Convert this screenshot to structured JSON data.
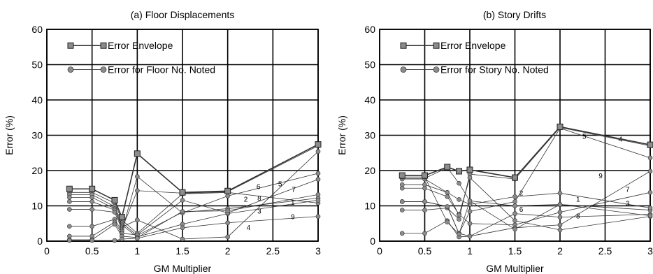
{
  "chart_data": [
    {
      "type": "line",
      "title": "(a) Floor Displacements",
      "xlabel": "GM Multiplier",
      "ylabel": "Error (%)",
      "xlim": [
        0,
        3
      ],
      "ylim": [
        0,
        60
      ],
      "xticks": [
        "0",
        "0.5",
        "1",
        "1.5",
        "2",
        "2.5",
        "3"
      ],
      "yticks": [
        "0",
        "10",
        "20",
        "30",
        "40",
        "50",
        "60"
      ],
      "grid": true,
      "legend": {
        "position": "top-left",
        "entries": [
          {
            "label": "Error Envelope",
            "marker": "square"
          },
          {
            "label": "Error for Floor No. Noted",
            "marker": "circle"
          }
        ]
      },
      "x": [
        0.25,
        0.5,
        0.75,
        0.83,
        1.0,
        1.5,
        2.0,
        3.0
      ],
      "envelope": {
        "name": "Error Envelope",
        "values": [
          14.8,
          14.8,
          11.6,
          6.8,
          24.8,
          13.8,
          14.2,
          27.4
        ]
      },
      "series": [
        {
          "name": "1",
          "values": [
            13.8,
            13.8,
            10.8,
            6.0,
            2.2,
            13.4,
            13.8,
            10.8
          ],
          "label_x": 2.72,
          "label_y": 10.3
        },
        {
          "name": "2",
          "values": [
            13.2,
            13.2,
            9.8,
            5.2,
            1.6,
            8.2,
            9.2,
            12.2
          ],
          "label_x": 2.2,
          "label_y": 11.2
        },
        {
          "name": "3",
          "values": [
            12.4,
            12.4,
            9.2,
            4.6,
            1.2,
            4.8,
            7.8,
            11.6
          ],
          "label_x": 2.35,
          "label_y": 7.8
        },
        {
          "name": "4",
          "values": [
            11.2,
            11.2,
            8.8,
            4.0,
            6.0,
            0.6,
            1.2,
            25.4
          ],
          "label_x": 2.23,
          "label_y": 3.2
        },
        {
          "name": "5",
          "values": [
            9.0,
            9.0,
            8.2,
            3.4,
            14.3,
            13.6,
            14.0,
            27.0
          ],
          "label_x": 2.58,
          "label_y": 15.5
        },
        {
          "name": "6",
          "values": [
            4.2,
            4.2,
            6.2,
            2.8,
            18.3,
            8.0,
            12.8,
            19.2
          ],
          "label_x": 2.34,
          "label_y": 14.8
        },
        {
          "name": "7",
          "values": [
            1.4,
            1.4,
            5.4,
            2.2,
            1.8,
            11.6,
            8.0,
            17.5
          ],
          "label_x": 2.73,
          "label_y": 14.0
        },
        {
          "name": "8",
          "values": [
            0.4,
            0.4,
            4.8,
            1.4,
            1.0,
            8.4,
            8.6,
            13.2
          ],
          "label_x": 2.35,
          "label_y": 11.5
        },
        {
          "name": "9",
          "values": [
            0.2,
            0.2,
            0.2,
            0.6,
            0.8,
            3.8,
            5.2,
            7.0
          ],
          "label_x": 2.72,
          "label_y": 6.2
        }
      ]
    },
    {
      "type": "line",
      "title": "(b) Story Drifts",
      "xlabel": "GM Multiplier",
      "ylabel": "Error (%)",
      "xlim": [
        0,
        3
      ],
      "ylim": [
        0,
        60
      ],
      "xticks": [
        "0",
        "0.5",
        "1",
        "1.5",
        "2",
        "2.5",
        "3"
      ],
      "yticks": [
        "0",
        "10",
        "20",
        "30",
        "40",
        "50",
        "60"
      ],
      "grid": true,
      "legend": {
        "position": "top-left",
        "entries": [
          {
            "label": "Error Envelope",
            "marker": "square"
          },
          {
            "label": "Error for Story No. Noted",
            "marker": "circle"
          }
        ]
      },
      "x": [
        0.25,
        0.5,
        0.75,
        0.88,
        1.0,
        1.5,
        2.0,
        3.0
      ],
      "envelope": {
        "name": "Error Envelope",
        "values": [
          18.6,
          18.6,
          21.0,
          19.8,
          20.2,
          18.0,
          32.4,
          27.3
        ]
      },
      "series": [
        {
          "name": "1",
          "values": [
            17.8,
            17.8,
            20.8,
            16.4,
            11.4,
            10.0,
            10.4,
            8.8
          ],
          "label_x": 2.2,
          "label_y": 11.2
        },
        {
          "name": "2",
          "values": [
            16.0,
            16.0,
            13.8,
            11.8,
            10.4,
            12.6,
            13.6,
            9.4
          ],
          "label_x": 1.57,
          "label_y": 13.0
        },
        {
          "name": "3",
          "values": [
            15.0,
            15.0,
            12.6,
            7.6,
            5.0,
            4.6,
            8.2,
            13.8
          ],
          "label_x": 2.75,
          "label_y": 10.0
        },
        {
          "name": "4",
          "values": [
            11.2,
            11.2,
            9.8,
            2.2,
            8.4,
            11.2,
            32.0,
            23.6
          ],
          "label_x": 2.67,
          "label_y": 28.2
        },
        {
          "name": "5",
          "values": [
            8.8,
            8.8,
            9.4,
            6.2,
            19.0,
            17.6,
            32.2,
            27.0
          ],
          "label_x": 2.27,
          "label_y": 29.0
        },
        {
          "name": "6",
          "values": [
            2.2,
            2.2,
            5.8,
            1.2,
            1.4,
            7.8,
            6.8,
            7.6
          ],
          "label_x": 1.57,
          "label_y": 8.3
        },
        {
          "name": "7",
          "values": [
            11.2,
            11.2,
            9.8,
            2.2,
            1.4,
            3.8,
            4.6,
            19.8
          ],
          "label_x": 2.75,
          "label_y": 14.0
        },
        {
          "name": "8",
          "values": [
            17.6,
            17.6,
            13.8,
            7.4,
            18.0,
            5.8,
            3.2,
            7.0
          ],
          "label_x": 2.2,
          "label_y": 6.4
        },
        {
          "name": "9",
          "values": [
            18.2,
            18.2,
            5.4,
            2.0,
            11.4,
            3.4,
            10.4,
            7.2
          ],
          "label_x": 2.45,
          "label_y": 17.8
        }
      ]
    }
  ]
}
